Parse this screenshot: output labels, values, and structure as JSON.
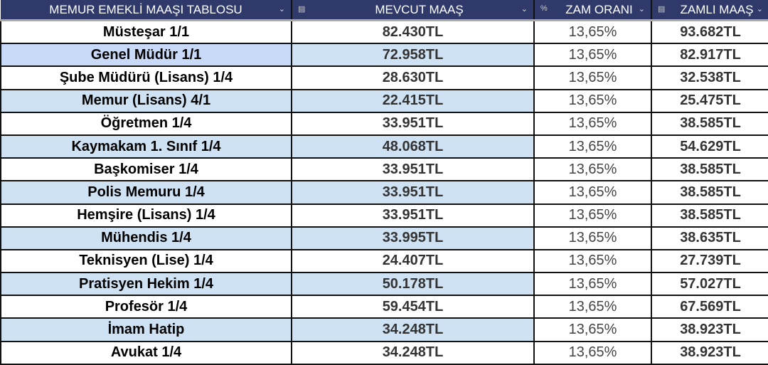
{
  "header": [
    {
      "label": "MEMUR EMEKLİ MAAŞI TABLOSU",
      "icon": ""
    },
    {
      "label": "MEVCUT MAAŞ",
      "icon": "money-icon"
    },
    {
      "label": "ZAM ORANI",
      "icon": "percent-icon"
    },
    {
      "label": "ZAMLI MAAŞ",
      "icon": "money-icon"
    }
  ],
  "rows": [
    {
      "name": "Müsteşar 1/1",
      "current": "82.430TL",
      "rate": "13,65%",
      "new": "93.682TL"
    },
    {
      "name": "Genel Müdür 1/1",
      "current": "72.958TL",
      "rate": "13,65%",
      "new": "82.917TL"
    },
    {
      "name": "Şube Müdürü (Lisans) 1/4",
      "current": "28.630TL",
      "rate": "13,65%",
      "new": "32.538TL"
    },
    {
      "name": "Memur (Lisans) 4/1",
      "current": "22.415TL",
      "rate": "13,65%",
      "new": "25.475TL"
    },
    {
      "name": "Öğretmen 1/4",
      "current": "33.951TL",
      "rate": "13,65%",
      "new": "38.585TL"
    },
    {
      "name": "Kaymakam 1. Sınıf 1/4",
      "current": "48.068TL",
      "rate": "13,65%",
      "new": "54.629TL"
    },
    {
      "name": "Başkomiser 1/4",
      "current": "33.951TL",
      "rate": "13,65%",
      "new": "38.585TL"
    },
    {
      "name": "Polis Memuru 1/4",
      "current": "33.951TL",
      "rate": "13,65%",
      "new": "38.585TL"
    },
    {
      "name": "Hemşire (Lisans) 1/4",
      "current": "33.951TL",
      "rate": "13,65%",
      "new": "38.585TL"
    },
    {
      "name": "Mühendis 1/4",
      "current": "33.995TL",
      "rate": "13,65%",
      "new": "38.635TL"
    },
    {
      "name": "Teknisyen (Lise) 1/4",
      "current": "24.407TL",
      "rate": "13,65%",
      "new": "27.739TL"
    },
    {
      "name": "Pratisyen Hekim 1/4",
      "current": "50.178TL",
      "rate": "13,65%",
      "new": "57.027TL"
    },
    {
      "name": "Profesör 1/4",
      "current": "59.454TL",
      "rate": "13,65%",
      "new": "67.569TL"
    },
    {
      "name": "İmam Hatip",
      "current": "34.248TL",
      "rate": "13,65%",
      "new": "38.923TL"
    },
    {
      "name": "Avukat 1/4",
      "current": "34.248TL",
      "rate": "13,65%",
      "new": "38.923TL"
    }
  ],
  "colors": {
    "header_bg": "#2f3a6b",
    "alt_row": "#cfe2f3",
    "selected_row": "#c9daf8"
  }
}
